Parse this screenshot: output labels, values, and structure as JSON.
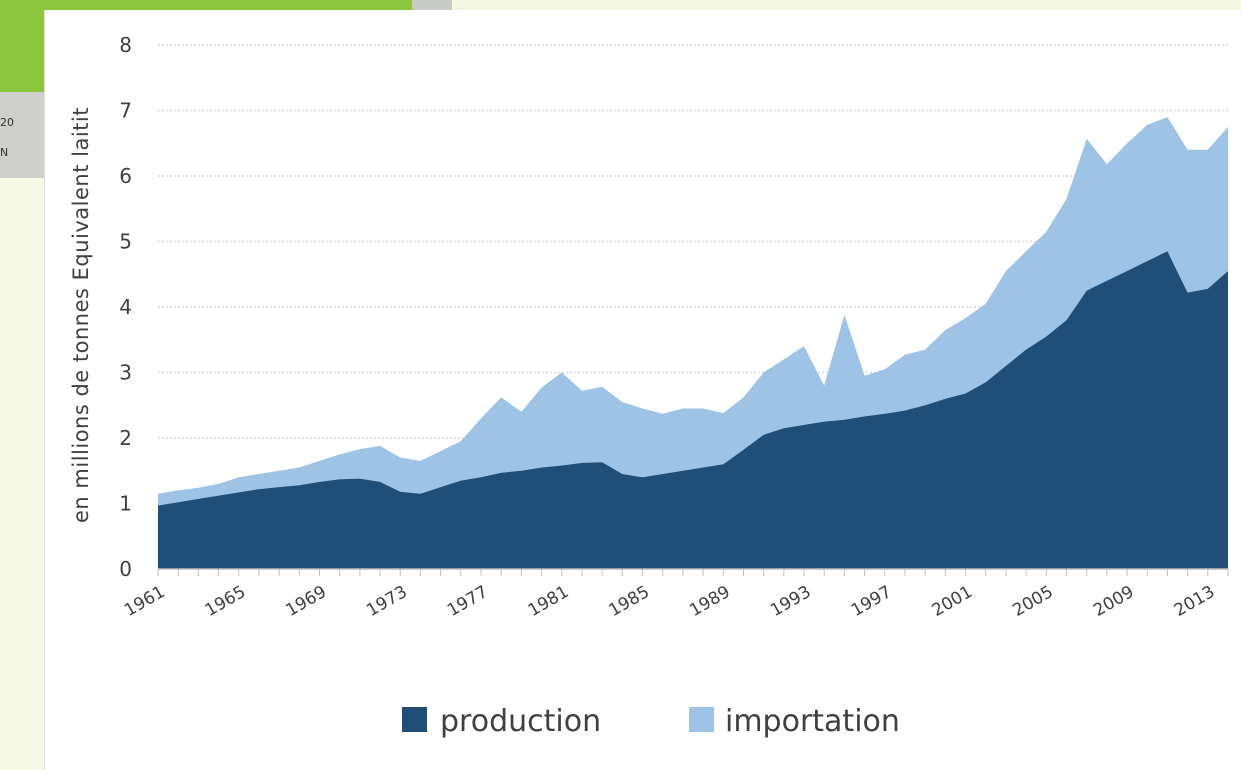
{
  "background": {
    "fragment_1": "20",
    "fragment_2": "N"
  },
  "chart_data": {
    "type": "area",
    "stacked": true,
    "title": "",
    "ylabel": "en millions de tonnes Equivalent laitit",
    "xlabel": "",
    "ylim": [
      0,
      8
    ],
    "yticks": [
      0,
      1,
      2,
      3,
      4,
      5,
      6,
      7,
      8
    ],
    "xlim": [
      1961,
      2014
    ],
    "x_tick_labels": [
      "1961",
      "1965",
      "1969",
      "1973",
      "1977",
      "1981",
      "1985",
      "1989",
      "1993",
      "1997",
      "2001",
      "2005",
      "2009",
      "2013"
    ],
    "grid": true,
    "legend_position": "bottom",
    "x": [
      1961,
      1962,
      1963,
      1964,
      1965,
      1966,
      1967,
      1968,
      1969,
      1970,
      1971,
      1972,
      1973,
      1974,
      1975,
      1976,
      1977,
      1978,
      1979,
      1980,
      1981,
      1982,
      1983,
      1984,
      1985,
      1986,
      1987,
      1988,
      1989,
      1990,
      1991,
      1992,
      1993,
      1994,
      1995,
      1996,
      1997,
      1998,
      1999,
      2000,
      2001,
      2002,
      2003,
      2004,
      2005,
      2006,
      2007,
      2008,
      2009,
      2010,
      2011,
      2012,
      2013,
      2014
    ],
    "series": [
      {
        "name": "production",
        "color": "#1f4e79",
        "values": [
          0.97,
          1.02,
          1.07,
          1.12,
          1.17,
          1.22,
          1.25,
          1.28,
          1.33,
          1.37,
          1.38,
          1.33,
          1.18,
          1.15,
          1.25,
          1.35,
          1.4,
          1.47,
          1.5,
          1.55,
          1.58,
          1.62,
          1.63,
          1.45,
          1.4,
          1.45,
          1.5,
          1.55,
          1.6,
          1.82,
          2.05,
          2.15,
          2.2,
          2.25,
          2.28,
          2.33,
          2.37,
          2.42,
          2.5,
          2.6,
          2.68,
          2.85,
          3.1,
          3.35,
          3.55,
          3.8,
          4.25,
          4.4,
          4.55,
          4.7,
          4.85,
          4.22,
          4.28,
          4.55
        ]
      },
      {
        "name": "importation",
        "color": "#9dc3e6",
        "values": [
          0.18,
          0.18,
          0.17,
          0.18,
          0.23,
          0.23,
          0.25,
          0.27,
          0.32,
          0.38,
          0.45,
          0.55,
          0.52,
          0.5,
          0.55,
          0.6,
          0.9,
          1.15,
          0.9,
          1.22,
          1.42,
          1.1,
          1.15,
          1.1,
          1.05,
          0.92,
          0.95,
          0.9,
          0.78,
          0.8,
          0.95,
          1.05,
          1.2,
          0.55,
          1.6,
          0.62,
          0.68,
          0.85,
          0.85,
          1.05,
          1.15,
          1.2,
          1.45,
          1.5,
          1.6,
          1.85,
          2.32,
          1.78,
          1.95,
          2.08,
          2.05,
          2.18,
          2.12,
          2.2
        ]
      }
    ]
  }
}
